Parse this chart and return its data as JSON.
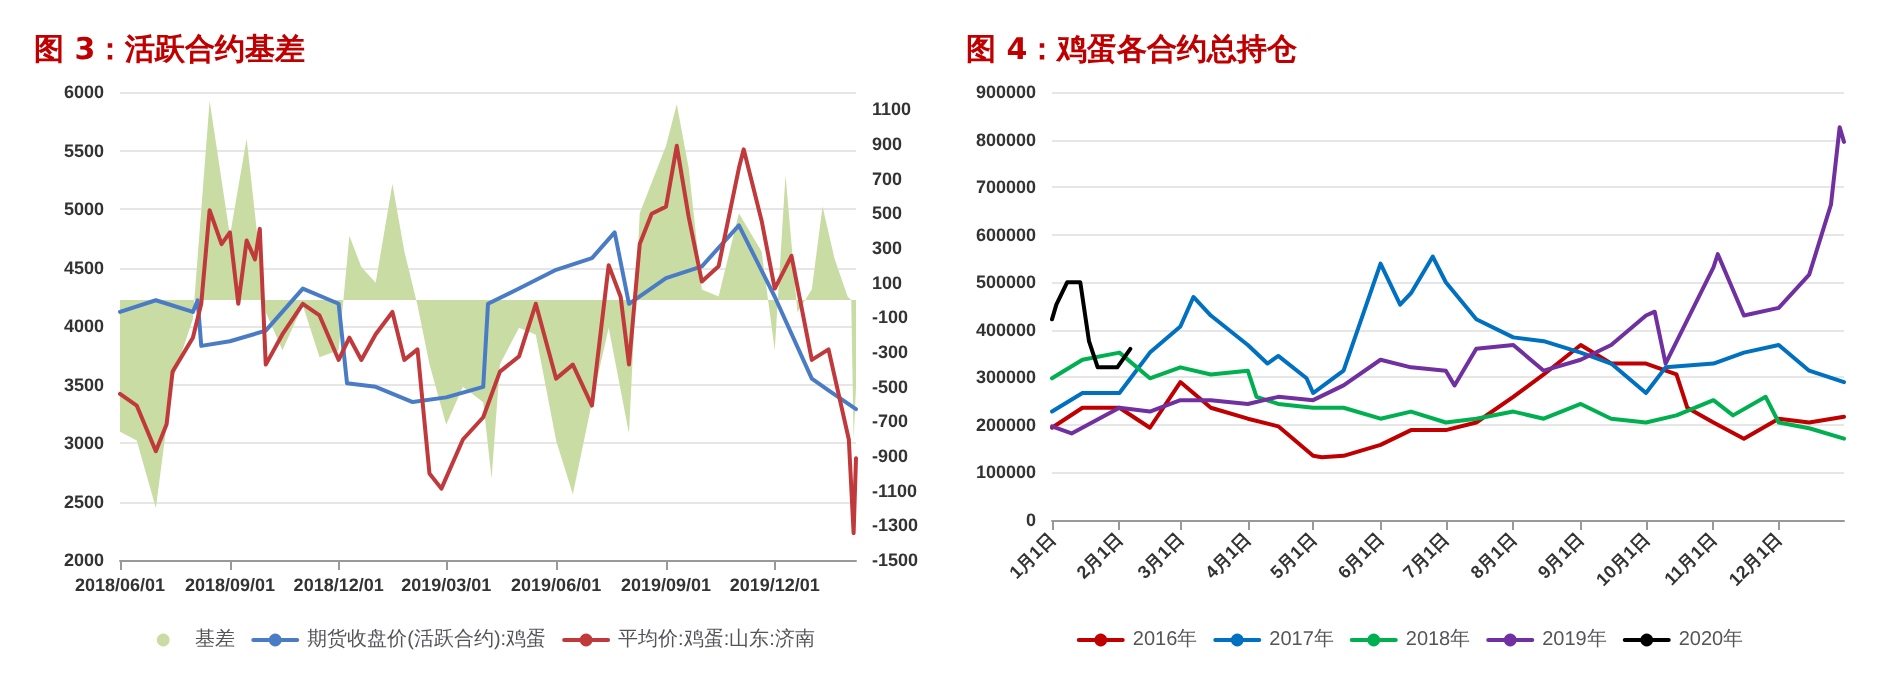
{
  "chart_data": [
    {
      "type": "line",
      "title": "图 3：活跃合约基差",
      "ylim": [
        2000,
        6000
      ],
      "yticks": [
        2000,
        2500,
        3000,
        3500,
        4000,
        4500,
        5000,
        5500,
        6000
      ],
      "y2lim": [
        -1500,
        1200
      ],
      "y2ticks": [
        -1500,
        -1300,
        -1100,
        -900,
        -700,
        -500,
        -300,
        -100,
        100,
        300,
        500,
        700,
        900,
        1100
      ],
      "xlim": [
        "2018-06-01",
        "2020-02-07"
      ],
      "xticks": [
        {
          "value": "2018-06-01",
          "label": "2018/06/01"
        },
        {
          "value": "2018-09-01",
          "label": "2018/09/01"
        },
        {
          "value": "2018-12-01",
          "label": "2018/12/01"
        },
        {
          "value": "2019-03-01",
          "label": "2019/03/01"
        },
        {
          "value": "2019-06-01",
          "label": "2019/06/01"
        },
        {
          "value": "2019-09-01",
          "label": "2019/09/01"
        },
        {
          "value": "2019-12-01",
          "label": "2019/12/01"
        }
      ],
      "grid": "y",
      "legend": "bottom",
      "marker": "none",
      "line_style": "solid",
      "series": [
        {
          "name": "基差",
          "type": "area",
          "axis": "y2",
          "color": "#c9dca4",
          "x": [
            "2018-06-01",
            "2018-06-15",
            "2018-07-01",
            "2018-07-15",
            "2018-08-01",
            "2018-08-15",
            "2018-09-01",
            "2018-09-15",
            "2018-10-01",
            "2018-10-15",
            "2018-11-01",
            "2018-11-15",
            "2018-12-01",
            "2018-12-10",
            "2018-12-20",
            "2019-01-01",
            "2019-01-15",
            "2019-01-25",
            "2019-02-05",
            "2019-02-15",
            "2019-03-01",
            "2019-03-15",
            "2019-04-01",
            "2019-04-08",
            "2019-04-15",
            "2019-05-01",
            "2019-05-15",
            "2019-06-01",
            "2019-06-15",
            "2019-07-01",
            "2019-07-15",
            "2019-08-01",
            "2019-08-10",
            "2019-09-01",
            "2019-09-10",
            "2019-09-20",
            "2019-10-01",
            "2019-10-15",
            "2019-11-01",
            "2019-11-20",
            "2019-12-01",
            "2019-12-10",
            "2019-12-20",
            "2020-01-01",
            "2020-01-10",
            "2020-01-20",
            "2020-01-31",
            "2020-02-03",
            "2020-02-05",
            "2020-02-07"
          ],
          "values": [
            -760,
            -810,
            -1200,
            -460,
            -110,
            1150,
            370,
            930,
            -70,
            -290,
            -30,
            -330,
            -290,
            370,
            190,
            100,
            670,
            280,
            -30,
            -370,
            -720,
            -500,
            -590,
            -1030,
            -370,
            -160,
            -200,
            -810,
            -1120,
            -590,
            -160,
            -770,
            500,
            890,
            1130,
            760,
            60,
            20,
            500,
            280,
            -290,
            720,
            -70,
            60,
            540,
            240,
            20,
            0,
            -810,
            -500
          ]
        },
        {
          "name": "期货收盘价(活跃合约):鸡蛋",
          "type": "line",
          "color": "#4a7cc6",
          "x": [
            "2018-06-01",
            "2018-07-01",
            "2018-08-01",
            "2018-08-05",
            "2018-08-08",
            "2018-09-01",
            "2018-10-01",
            "2018-11-01",
            "2018-12-01",
            "2018-12-08",
            "2019-01-01",
            "2019-02-01",
            "2019-03-01",
            "2019-04-01",
            "2019-04-05",
            "2019-05-01",
            "2019-06-01",
            "2019-07-01",
            "2019-07-20",
            "2019-08-01",
            "2019-09-01",
            "2019-10-01",
            "2019-11-01",
            "2019-12-01",
            "2020-01-01",
            "2020-01-15",
            "2020-02-07"
          ],
          "values": [
            4120,
            4220,
            4120,
            4220,
            3830,
            3870,
            3960,
            4320,
            4190,
            3510,
            3480,
            3350,
            3390,
            3480,
            4190,
            4320,
            4480,
            4580,
            4800,
            4190,
            4410,
            4510,
            4860,
            4250,
            3550,
            3450,
            3290
          ]
        },
        {
          "name": "平均价:鸡蛋:山东:济南",
          "type": "line",
          "color": "#c0393b",
          "x": [
            "2018-06-01",
            "2018-06-15",
            "2018-07-01",
            "2018-07-10",
            "2018-07-15",
            "2018-08-01",
            "2018-08-08",
            "2018-08-15",
            "2018-08-25",
            "2018-09-01",
            "2018-09-08",
            "2018-09-15",
            "2018-09-22",
            "2018-09-26",
            "2018-10-01",
            "2018-10-15",
            "2018-11-01",
            "2018-11-15",
            "2018-12-01",
            "2018-12-10",
            "2018-12-20",
            "2019-01-01",
            "2019-01-15",
            "2019-01-25",
            "2019-02-05",
            "2019-02-15",
            "2019-02-25",
            "2019-03-15",
            "2019-04-01",
            "2019-04-15",
            "2019-05-01",
            "2019-05-15",
            "2019-06-01",
            "2019-06-15",
            "2019-07-01",
            "2019-07-15",
            "2019-07-25",
            "2019-08-01",
            "2019-08-10",
            "2019-08-20",
            "2019-09-01",
            "2019-09-10",
            "2019-09-20",
            "2019-10-01",
            "2019-10-15",
            "2019-11-01",
            "2019-11-05",
            "2019-11-20",
            "2019-12-01",
            "2019-12-15",
            "2020-01-01",
            "2020-01-15",
            "2020-02-01",
            "2020-02-05",
            "2020-02-07"
          ],
          "values": [
            3420,
            3320,
            2930,
            3160,
            3610,
            3900,
            4190,
            4990,
            4700,
            4800,
            4190,
            4730,
            4570,
            4830,
            3670,
            3930,
            4190,
            4090,
            3710,
            3900,
            3710,
            3930,
            4120,
            3710,
            3800,
            2740,
            2610,
            3030,
            3220,
            3610,
            3740,
            4190,
            3550,
            3670,
            3320,
            4520,
            4250,
            3670,
            4700,
            4960,
            5020,
            5540,
            4930,
            4380,
            4510,
            5350,
            5510,
            4900,
            4320,
            4600,
            3710,
            3800,
            3030,
            2230,
            2870
          ]
        }
      ]
    },
    {
      "type": "line",
      "title": "图 4：鸡蛋各合约总持仓",
      "ylim": [
        0,
        900000
      ],
      "yticks": [
        0,
        100000,
        200000,
        300000,
        400000,
        500000,
        600000,
        700000,
        800000,
        900000
      ],
      "xlim": [
        "--01-01",
        "--12-31"
      ],
      "xticks": [
        {
          "value": "--01-01",
          "label": "1月1日"
        },
        {
          "value": "--02-01",
          "label": "2月1日"
        },
        {
          "value": "--03-01",
          "label": "3月1日"
        },
        {
          "value": "--04-01",
          "label": "4月1日"
        },
        {
          "value": "--05-01",
          "label": "5月1日"
        },
        {
          "value": "--06-01",
          "label": "6月1日"
        },
        {
          "value": "--07-01",
          "label": "7月1日"
        },
        {
          "value": "--08-01",
          "label": "8月1日"
        },
        {
          "value": "--09-01",
          "label": "9月1日"
        },
        {
          "value": "--10-01",
          "label": "10月1日"
        },
        {
          "value": "--11-01",
          "label": "11月1日"
        },
        {
          "value": "--12-01",
          "label": "12月1日"
        }
      ],
      "grid": "y",
      "legend": "bottom",
      "marker": "none",
      "line_style": "solid",
      "series": [
        {
          "name": "2016年",
          "color": "#c00000",
          "x": [
            "--01-01",
            "--01-15",
            "--02-01",
            "--02-15",
            "--03-01",
            "--03-15",
            "--04-01",
            "--04-15",
            "--05-01",
            "--05-05",
            "--05-15",
            "--06-01",
            "--06-15",
            "--07-01",
            "--07-15",
            "--08-01",
            "--08-15",
            "--09-01",
            "--09-15",
            "--10-01",
            "--10-15",
            "--10-20",
            "--11-01",
            "--11-15",
            "--12-01",
            "--12-15",
            "--12-31"
          ],
          "values": [
            194000,
            236000,
            236000,
            194000,
            290000,
            236000,
            213000,
            197000,
            135000,
            132000,
            135000,
            158000,
            189000,
            189000,
            205000,
            259000,
            306000,
            368000,
            329000,
            329000,
            306000,
            236000,
            205000,
            171000,
            213000,
            205000,
            217000
          ]
        },
        {
          "name": "2017年",
          "color": "#0070c0",
          "x": [
            "--01-01",
            "--01-15",
            "--02-01",
            "--02-15",
            "--03-01",
            "--03-07",
            "--03-15",
            "--04-01",
            "--04-10",
            "--04-15",
            "--04-28",
            "--05-01",
            "--05-15",
            "--06-01",
            "--06-10",
            "--06-15",
            "--06-25",
            "--07-01",
            "--07-15",
            "--08-01",
            "--08-15",
            "--09-01",
            "--09-15",
            "--10-01",
            "--10-10",
            "--11-01",
            "--11-15",
            "--12-01",
            "--12-15",
            "--12-31"
          ],
          "values": [
            228000,
            267000,
            267000,
            352000,
            407000,
            469000,
            430000,
            368000,
            329000,
            345000,
            298000,
            267000,
            314000,
            539000,
            453000,
            477000,
            554000,
            500000,
            422000,
            384000,
            376000,
            352000,
            329000,
            267000,
            321000,
            329000,
            352000,
            368000,
            314000,
            290000
          ]
        },
        {
          "name": "2018年",
          "color": "#00b050",
          "x": [
            "--01-01",
            "--01-15",
            "--02-01",
            "--02-15",
            "--03-01",
            "--03-15",
            "--04-01",
            "--04-05",
            "--04-15",
            "--05-01",
            "--05-15",
            "--06-01",
            "--06-15",
            "--07-01",
            "--07-15",
            "--08-01",
            "--08-15",
            "--09-01",
            "--09-15",
            "--10-01",
            "--10-15",
            "--11-01",
            "--11-10",
            "--11-25",
            "--12-01",
            "--12-15",
            "--12-31"
          ],
          "values": [
            298000,
            337000,
            352000,
            298000,
            321000,
            306000,
            314000,
            259000,
            244000,
            236000,
            236000,
            213000,
            228000,
            205000,
            213000,
            228000,
            213000,
            244000,
            213000,
            205000,
            220000,
            252000,
            220000,
            259000,
            205000,
            193000,
            171000
          ]
        },
        {
          "name": "2019年",
          "color": "#7030a0",
          "x": [
            "--01-01",
            "--01-10",
            "--02-01",
            "--02-15",
            "--03-01",
            "--03-15",
            "--04-01",
            "--04-15",
            "--05-01",
            "--05-15",
            "--06-01",
            "--06-15",
            "--07-01",
            "--07-05",
            "--07-15",
            "--08-01",
            "--08-15",
            "--09-01",
            "--09-15",
            "--10-01",
            "--10-05",
            "--10-10",
            "--11-01",
            "--11-03",
            "--11-15",
            "--12-01",
            "--12-15",
            "--12-25",
            "--12-29",
            "--12-31"
          ],
          "values": [
            197000,
            182000,
            236000,
            228000,
            252000,
            252000,
            244000,
            259000,
            252000,
            283000,
            337000,
            321000,
            314000,
            283000,
            360000,
            368000,
            314000,
            337000,
            368000,
            430000,
            438000,
            329000,
            531000,
            559000,
            430000,
            446000,
            516000,
            663000,
            826000,
            795000
          ]
        },
        {
          "name": "2020年",
          "color": "#000000",
          "x": [
            "--01-01",
            "--01-03",
            "--01-08",
            "--01-14",
            "--01-18",
            "--01-22",
            "--01-31",
            "--02-06"
          ],
          "values": [
            422000,
            453000,
            500000,
            500000,
            376000,
            321000,
            321000,
            360000
          ]
        }
      ]
    }
  ]
}
